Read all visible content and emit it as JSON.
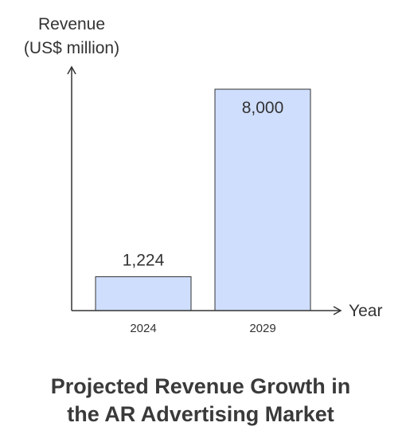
{
  "chart_data": {
    "type": "bar",
    "title_lines": [
      "Projected Revenue Growth in",
      "the AR Advertising Market"
    ],
    "ylabel_lines": [
      "Revenue",
      "(US$ million)"
    ],
    "xlabel": "Year",
    "categories": [
      "2024",
      "2029"
    ],
    "values": [
      1224,
      8000
    ],
    "value_labels": [
      "1,224",
      "8,000"
    ],
    "ylim": [
      0,
      8000
    ],
    "grid": false,
    "bar_color": "#cfdefd"
  }
}
